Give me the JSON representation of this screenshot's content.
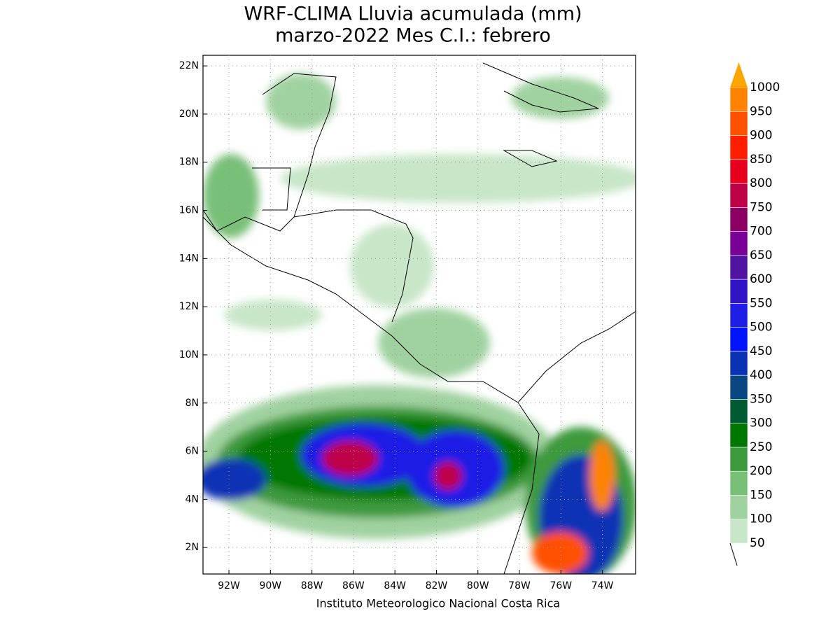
{
  "title": [
    "WRF-CLIMA Lluvia acumulada (mm)",
    "marzo-2022 Mes C.I.: febrero"
  ],
  "footer": "Instituto Meteorologico Nacional Costa Rica",
  "map": {
    "xlim": [
      -93.25,
      -72.4
    ],
    "ylim": [
      0.9,
      22.44
    ],
    "grid": true,
    "xticks": [
      {
        "value": -92,
        "label": "92W"
      },
      {
        "value": -90,
        "label": "90W"
      },
      {
        "value": -88,
        "label": "88W"
      },
      {
        "value": -86,
        "label": "86W"
      },
      {
        "value": -84,
        "label": "84W"
      },
      {
        "value": -82,
        "label": "82W"
      },
      {
        "value": -80,
        "label": "80W"
      },
      {
        "value": -78,
        "label": "78W"
      },
      {
        "value": -76,
        "label": "76W"
      },
      {
        "value": -74,
        "label": "74W"
      }
    ],
    "yticks": [
      {
        "value": 2,
        "label": "2N"
      },
      {
        "value": 4,
        "label": "4N"
      },
      {
        "value": 6,
        "label": "6N"
      },
      {
        "value": 8,
        "label": "8N"
      },
      {
        "value": 10,
        "label": "10N"
      },
      {
        "value": 12,
        "label": "12N"
      },
      {
        "value": 14,
        "label": "14N"
      },
      {
        "value": 16,
        "label": "16N"
      },
      {
        "value": 18,
        "label": "18N"
      },
      {
        "value": 20,
        "label": "20N"
      },
      {
        "value": 22,
        "label": "22N"
      }
    ]
  },
  "colorbar": {
    "levels": [
      50,
      100,
      150,
      200,
      250,
      300,
      350,
      400,
      450,
      500,
      550,
      600,
      650,
      700,
      750,
      800,
      850,
      900,
      950,
      1000
    ],
    "colors": [
      "#c8e6c8",
      "#a0d2a0",
      "#78bf78",
      "#3c9a3c",
      "#007800",
      "#005a32",
      "#0a4682",
      "#0a32b4",
      "#0014ff",
      "#1e1ee6",
      "#3214c8",
      "#5014a0",
      "#780096",
      "#8c0064",
      "#be0046",
      "#e6001e",
      "#ff1e00",
      "#ff5000",
      "#ff8200",
      "#ffa500"
    ]
  }
}
